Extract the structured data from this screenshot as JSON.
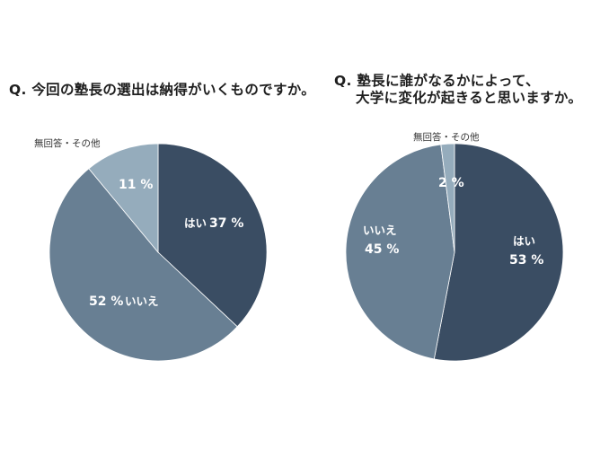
{
  "colors": {
    "yes": "#3a4d63",
    "no": "#687f93",
    "other": "#95acbc"
  },
  "chart_data": [
    {
      "type": "pie",
      "title": "Q. 今回の塾長の選出は納得がいくものですか。",
      "slices": [
        {
          "label": "はい",
          "value": 37,
          "value_label": "37 %"
        },
        {
          "label": "いいえ",
          "value": 52,
          "value_label": "52 %"
        },
        {
          "label": "無回答・その他",
          "value": 11,
          "value_label": "11 %"
        }
      ]
    },
    {
      "type": "pie",
      "title_line1": "Q. 塾長に誰がなるかによって、",
      "title_line2": "大学に変化が起きると思いますか。",
      "slices": [
        {
          "label": "はい",
          "value": 53,
          "value_label": "53 %"
        },
        {
          "label": "いいえ",
          "value": 45,
          "value_label": "45 %"
        },
        {
          "label": "無回答・その他",
          "value": 2,
          "value_label": "2 %"
        }
      ]
    }
  ]
}
